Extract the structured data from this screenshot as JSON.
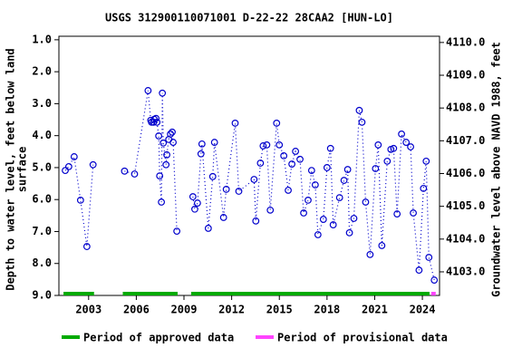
{
  "chart_data": {
    "type": "line",
    "title": "USGS 312900110071001 D-22-22 28CAA2 [HUN-LO]",
    "y_label": [
      "Depth to water level, feet below land",
      "surface"
    ],
    "y2_label": "Groundwater level above NAVD 1988, feet",
    "xlim": [
      2001.13,
      2025.08
    ],
    "xticks": [
      2003,
      2006,
      2009,
      2012,
      2015,
      2018,
      2021,
      2024
    ],
    "ylim": [
      9.0,
      0.89
    ],
    "yticks": [
      {
        "value": 1,
        "label": "1.0"
      },
      {
        "value": 2,
        "label": "2.0"
      },
      {
        "value": 3,
        "label": "3.0"
      },
      {
        "value": 4,
        "label": "4.0"
      },
      {
        "value": 5,
        "label": "5.0"
      },
      {
        "value": 6,
        "label": "6.0"
      },
      {
        "value": 7,
        "label": "7.0"
      },
      {
        "value": 8,
        "label": "8.0"
      },
      {
        "value": 9,
        "label": "9.0"
      }
    ],
    "y2lim": [
      4102.28,
      4110.19
    ],
    "y2ticks": [
      {
        "value": 4103,
        "label": "4103.0"
      },
      {
        "value": 4104,
        "label": "4104.0"
      },
      {
        "value": 4105,
        "label": "4105.0"
      },
      {
        "value": 4106,
        "label": "4106.0"
      },
      {
        "value": 4107,
        "label": "4107.0"
      },
      {
        "value": 4108,
        "label": "4108.0"
      },
      {
        "value": 4109,
        "label": "4109.0"
      },
      {
        "value": 4110,
        "label": "4110.0"
      }
    ],
    "x": [
      2001.53,
      2001.75,
      2002.09,
      2002.49,
      2002.89,
      2003.28,
      null,
      2005.26,
      2005.89,
      2006.74,
      2006.91,
      2006.96,
      2007.08,
      2007.13,
      2007.24,
      2007.3,
      2007.41,
      2007.47,
      2007.58,
      2007.64,
      2007.7,
      2007.87,
      2007.92,
      2008.04,
      2008.15,
      2008.26,
      2008.32,
      2008.55,
      null,
      2009.56,
      2009.68,
      2009.85,
      2010.07,
      2010.13,
      2010.53,
      2010.81,
      2010.92,
      2011.49,
      2011.66,
      2012.22,
      2012.45,
      2013.41,
      2013.52,
      2013.81,
      2013.98,
      2014.21,
      2014.43,
      2014.83,
      2015.0,
      2015.28,
      2015.56,
      2015.79,
      2016.02,
      2016.3,
      2016.53,
      2016.81,
      2017.03,
      2017.26,
      2017.43,
      2017.77,
      2018.0,
      2018.22,
      2018.39,
      2018.79,
      2019.07,
      2019.3,
      2019.41,
      2019.69,
      2020.03,
      2020.2,
      2020.43,
      2020.71,
      2021.05,
      2021.22,
      2021.45,
      2021.79,
      2022.02,
      2022.19,
      2022.41,
      2022.69,
      2022.98,
      2023.26,
      2023.43,
      2023.79,
      2024.07,
      2024.24,
      2024.41,
      2024.75
    ],
    "series": [
      {
        "color": "#0000cc",
        "values": [
          5.09,
          4.97,
          4.66,
          6.02,
          7.47,
          4.91,
          null,
          5.11,
          5.2,
          2.59,
          3.52,
          3.58,
          3.58,
          3.49,
          3.46,
          3.58,
          4.01,
          5.26,
          6.08,
          2.67,
          4.23,
          4.91,
          4.6,
          4.12,
          3.95,
          3.89,
          4.21,
          6.99,
          null,
          5.91,
          6.3,
          6.11,
          4.57,
          4.26,
          6.9,
          5.28,
          4.21,
          6.56,
          5.68,
          3.61,
          5.74,
          5.37,
          6.67,
          4.86,
          4.32,
          4.29,
          6.33,
          3.61,
          4.29,
          4.63,
          5.71,
          4.89,
          4.49,
          4.74,
          6.42,
          6.02,
          5.09,
          5.54,
          7.1,
          6.62,
          5.0,
          4.4,
          6.79,
          5.94,
          5.4,
          5.06,
          7.04,
          6.59,
          3.21,
          3.58,
          6.08,
          7.72,
          5.03,
          4.29,
          7.44,
          4.8,
          4.43,
          4.4,
          6.45,
          3.95,
          4.21,
          4.35,
          6.42,
          8.21,
          5.65,
          4.8,
          7.81,
          8.52
        ]
      }
    ],
    "periods": [
      {
        "name": "Period of approved data",
        "color": "#00aa00",
        "ranges": [
          [
            2001.42,
            2003.34
          ],
          [
            2005.15,
            2008.6
          ],
          [
            2009.45,
            2024.45
          ]
        ]
      },
      {
        "name": "Period of provisional data",
        "color": "#ff44ff",
        "ranges": [
          [
            2024.56,
            2024.84
          ]
        ]
      }
    ]
  }
}
